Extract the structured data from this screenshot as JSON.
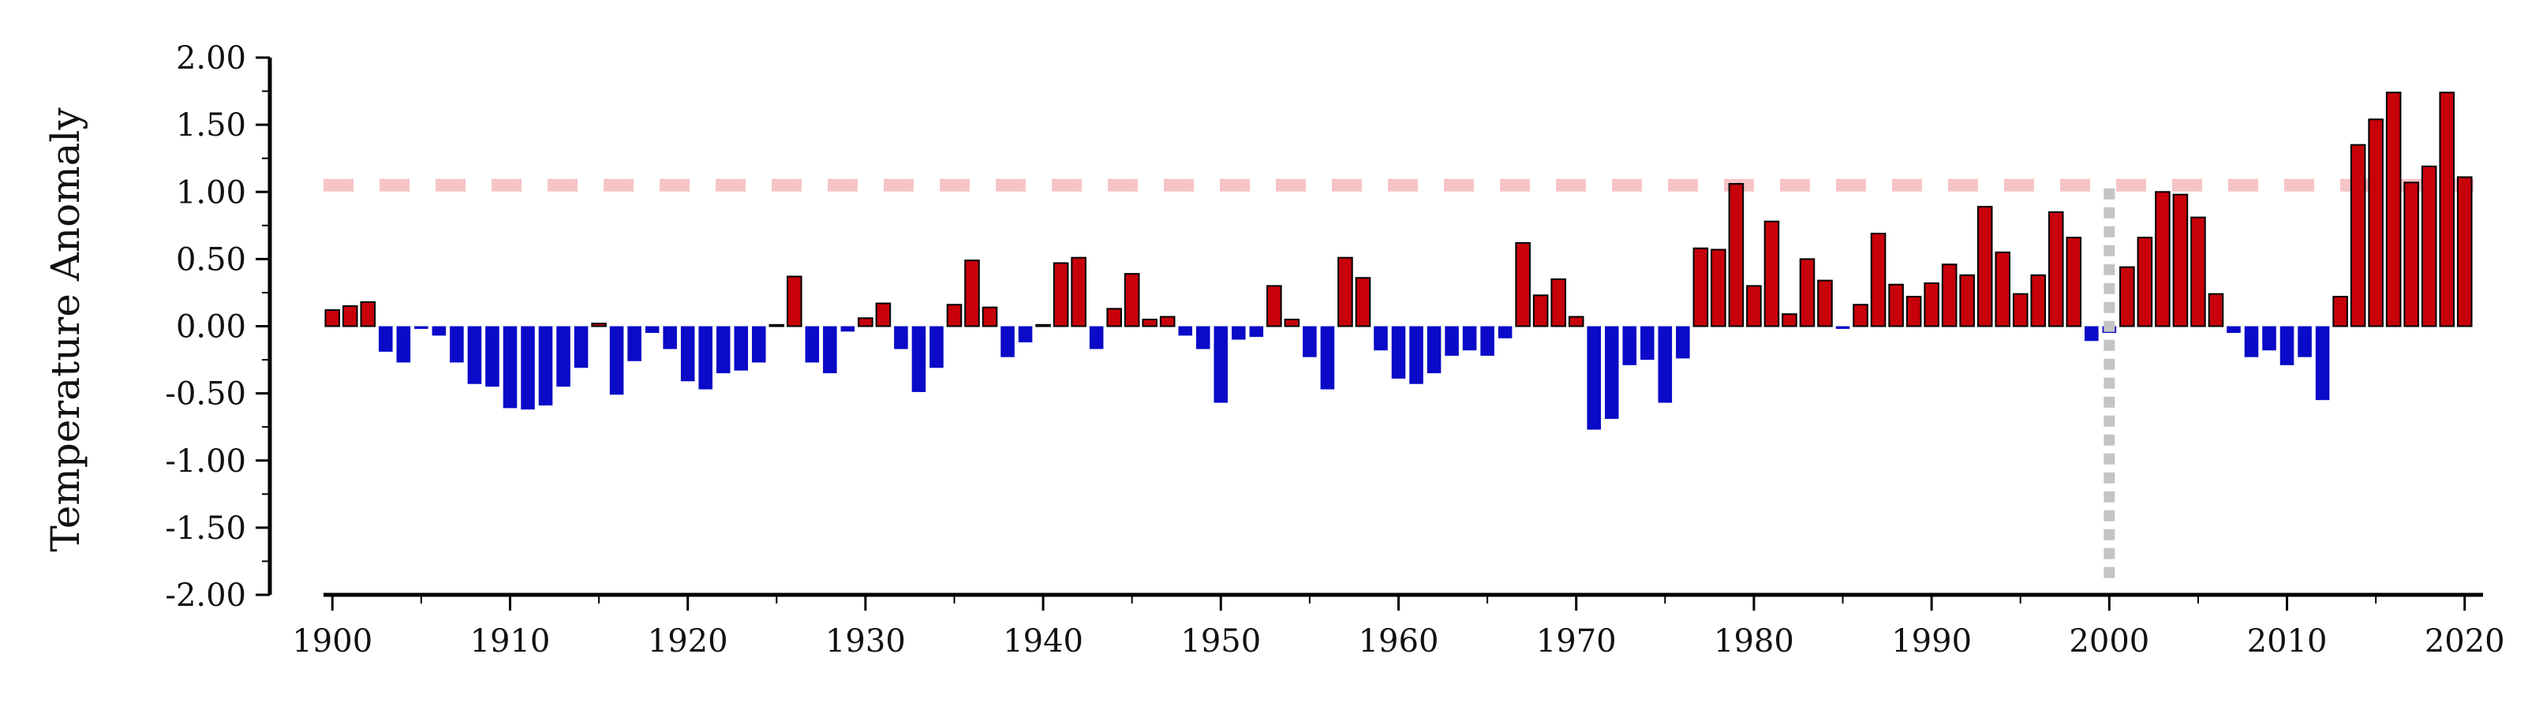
{
  "chart_data": {
    "type": "bar",
    "ylabel": "Temperature Anomaly",
    "xlabel": "",
    "title": "",
    "ylim": [
      -2.0,
      2.0
    ],
    "xlim": [
      1899.5,
      2020.5
    ],
    "yticks": [
      "2.00",
      "1.50",
      "1.00",
      "0.50",
      "0.00",
      "-0.50",
      "-1.00",
      "-1.50",
      "-2.00"
    ],
    "ytick_values": [
      2.0,
      1.5,
      1.0,
      0.5,
      0.0,
      -0.5,
      -1.0,
      -1.5,
      -2.0
    ],
    "xticks": [
      "1900",
      "1910",
      "1920",
      "1930",
      "1940",
      "1950",
      "1960",
      "1970",
      "1980",
      "1990",
      "2000",
      "2010",
      "2020"
    ],
    "xtick_values": [
      1900,
      1910,
      1920,
      1930,
      1940,
      1950,
      1960,
      1970,
      1980,
      1990,
      2000,
      2010,
      2020
    ],
    "grid": false,
    "reference_line": {
      "y": 1.05,
      "color": "#f7c4c6",
      "style": "dashed"
    },
    "marker_line": {
      "x": 2000,
      "color": "#c4c4c4",
      "style": "dotted"
    },
    "colors": {
      "positive": "#c8000a",
      "negative": "#0a0ac8"
    },
    "years": [
      1900,
      1901,
      1902,
      1903,
      1904,
      1905,
      1906,
      1907,
      1908,
      1909,
      1910,
      1911,
      1912,
      1913,
      1914,
      1915,
      1916,
      1917,
      1918,
      1919,
      1920,
      1921,
      1922,
      1923,
      1924,
      1925,
      1926,
      1927,
      1928,
      1929,
      1930,
      1931,
      1932,
      1933,
      1934,
      1935,
      1936,
      1937,
      1938,
      1939,
      1940,
      1941,
      1942,
      1943,
      1944,
      1945,
      1946,
      1947,
      1948,
      1949,
      1950,
      1951,
      1952,
      1953,
      1954,
      1955,
      1956,
      1957,
      1958,
      1959,
      1960,
      1961,
      1962,
      1963,
      1964,
      1965,
      1966,
      1967,
      1968,
      1969,
      1970,
      1971,
      1972,
      1973,
      1974,
      1975,
      1976,
      1977,
      1978,
      1979,
      1980,
      1981,
      1982,
      1983,
      1984,
      1985,
      1986,
      1987,
      1988,
      1989,
      1990,
      1991,
      1992,
      1993,
      1994,
      1995,
      1996,
      1997,
      1998,
      1999,
      2000,
      2001,
      2002,
      2003,
      2004,
      2005,
      2006,
      2007,
      2008,
      2009,
      2010,
      2011,
      2012,
      2013,
      2014,
      2015,
      2016,
      2017,
      2018,
      2019,
      2020
    ],
    "values": [
      0.12,
      0.15,
      0.18,
      -0.19,
      -0.27,
      -0.02,
      -0.07,
      -0.27,
      -0.43,
      -0.45,
      -0.61,
      -0.62,
      -0.59,
      -0.45,
      -0.31,
      0.02,
      -0.51,
      -0.26,
      -0.05,
      -0.17,
      -0.41,
      -0.47,
      -0.35,
      -0.33,
      -0.27,
      0.01,
      0.37,
      -0.27,
      -0.35,
      -0.04,
      0.06,
      0.17,
      -0.17,
      -0.49,
      -0.31,
      0.16,
      0.49,
      0.14,
      -0.23,
      -0.12,
      0.01,
      0.47,
      0.51,
      -0.17,
      0.13,
      0.39,
      0.05,
      0.07,
      -0.07,
      -0.17,
      -0.57,
      -0.1,
      -0.08,
      0.3,
      0.05,
      -0.23,
      -0.47,
      0.51,
      0.36,
      -0.18,
      -0.39,
      -0.43,
      -0.35,
      -0.22,
      -0.18,
      -0.22,
      -0.09,
      0.62,
      0.23,
      0.35,
      0.07,
      -0.77,
      -0.69,
      -0.29,
      -0.25,
      -0.57,
      -0.24,
      0.58,
      0.57,
      1.06,
      0.3,
      0.78,
      0.09,
      0.5,
      0.34,
      -0.02,
      0.16,
      0.69,
      0.31,
      0.22,
      0.32,
      0.46,
      0.38,
      0.89,
      0.55,
      0.24,
      0.38,
      0.85,
      0.66,
      -0.11,
      -0.05,
      0.44,
      0.66,
      1.0,
      0.98,
      0.81,
      0.24,
      -0.05,
      -0.23,
      -0.18,
      -0.29,
      -0.23,
      -0.55,
      0.22,
      1.35,
      1.54,
      1.74,
      1.07,
      1.19,
      1.74,
      1.11
    ]
  }
}
